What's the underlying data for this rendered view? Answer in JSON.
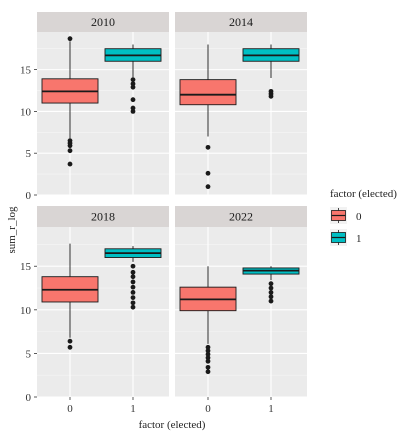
{
  "chart_data": {
    "type": "box",
    "xlabel": "factor (elected)",
    "ylabel": "sum_r_log",
    "ylim": [
      0,
      19.5
    ],
    "y_ticks": [
      0,
      5,
      10,
      15
    ],
    "categories": [
      "0",
      "1"
    ],
    "grid": true,
    "legend": {
      "title": "factor (elected)",
      "position": "right",
      "entries": [
        {
          "label": "0",
          "color": "#F8766D"
        },
        {
          "label": "1",
          "color": "#00BFC4"
        }
      ]
    },
    "panels": [
      {
        "title": "2010",
        "boxes": [
          {
            "category": "0",
            "whisker_low": 6.8,
            "q1": 11.0,
            "median": 12.4,
            "q3": 13.9,
            "whisker_high": 18.4,
            "outliers": [
              3.7,
              5.3,
              5.9,
              6.2,
              6.5,
              18.7
            ]
          },
          {
            "category": "1",
            "whisker_low": 14.1,
            "q1": 16.0,
            "median": 16.7,
            "q3": 17.5,
            "whisker_high": 18.0,
            "outliers": [
              10.0,
              10.4,
              11.4,
              12.9,
              13.3,
              13.8
            ]
          }
        ]
      },
      {
        "title": "2014",
        "boxes": [
          {
            "category": "0",
            "whisker_low": 7.0,
            "q1": 10.8,
            "median": 12.0,
            "q3": 13.8,
            "whisker_high": 18.0,
            "outliers": [
              1.0,
              2.6,
              5.7
            ]
          },
          {
            "category": "1",
            "whisker_low": 14.0,
            "q1": 16.0,
            "median": 16.7,
            "q3": 17.5,
            "whisker_high": 18.0,
            "outliers": [
              11.8,
              12.1,
              12.4
            ]
          }
        ]
      },
      {
        "title": "2018",
        "boxes": [
          {
            "category": "0",
            "whisker_low": 6.8,
            "q1": 10.9,
            "median": 12.3,
            "q3": 13.8,
            "whisker_high": 17.6,
            "outliers": [
              5.7,
              6.4
            ]
          },
          {
            "category": "1",
            "whisker_low": 15.5,
            "q1": 16.0,
            "median": 16.5,
            "q3": 17.0,
            "whisker_high": 17.3,
            "outliers": [
              10.3,
              10.8,
              11.4,
              12.0,
              12.6,
              13.2,
              13.8,
              14.3,
              15.0
            ]
          }
        ]
      },
      {
        "title": "2022",
        "boxes": [
          {
            "category": "0",
            "whisker_low": 6.1,
            "q1": 9.9,
            "median": 11.2,
            "q3": 12.6,
            "whisker_high": 15.0,
            "outliers": [
              2.9,
              3.4,
              4.1,
              4.5,
              4.9,
              5.3,
              5.7
            ]
          },
          {
            "category": "1",
            "whisker_low": 13.4,
            "q1": 14.1,
            "median": 14.5,
            "q3": 14.8,
            "whisker_high": 15.0,
            "outliers": [
              11.0,
              11.5,
              12.0,
              12.5,
              13.0
            ]
          }
        ]
      }
    ]
  }
}
